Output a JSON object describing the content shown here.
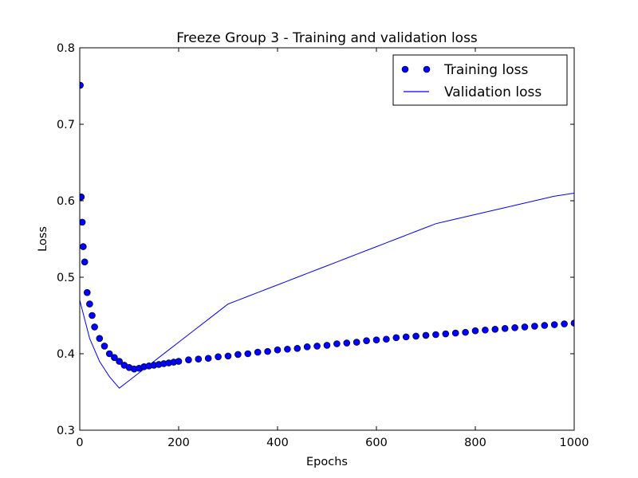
{
  "chart_data": {
    "type": "line",
    "title": "Freeze Group 3 - Training and validation loss",
    "xlabel": "Epochs",
    "ylabel": "Loss",
    "xlim": [
      0,
      1000
    ],
    "ylim": [
      0.3,
      0.8
    ],
    "xticks": [
      0,
      200,
      400,
      600,
      800,
      1000
    ],
    "yticks": [
      0.3,
      0.4,
      0.5,
      0.6,
      0.7,
      0.8
    ],
    "xtick_labels": [
      "0",
      "200",
      "400",
      "600",
      "800",
      "1000"
    ],
    "ytick_labels": [
      "0.3",
      "0.4",
      "0.5",
      "0.6",
      "0.7",
      "0.8"
    ],
    "grid": false,
    "legend_position": "top-right",
    "colors": {
      "series": "#0000ff",
      "axes": "#000000",
      "background": "#ffffff"
    },
    "series": [
      {
        "name": "Training loss",
        "style": "markers",
        "x": [
          1,
          3,
          5,
          7,
          10,
          15,
          20,
          25,
          30,
          40,
          50,
          60,
          70,
          80,
          90,
          100,
          110,
          120,
          130,
          140,
          150,
          160,
          170,
          180,
          190,
          200,
          220,
          240,
          260,
          280,
          300,
          320,
          340,
          360,
          380,
          400,
          420,
          440,
          460,
          480,
          500,
          520,
          540,
          560,
          580,
          600,
          620,
          640,
          660,
          680,
          700,
          720,
          740,
          760,
          780,
          800,
          820,
          840,
          860,
          880,
          900,
          920,
          940,
          960,
          980,
          1000
        ],
        "y": [
          0.751,
          0.605,
          0.572,
          0.54,
          0.52,
          0.48,
          0.465,
          0.45,
          0.435,
          0.42,
          0.41,
          0.4,
          0.395,
          0.39,
          0.385,
          0.382,
          0.38,
          0.381,
          0.383,
          0.384,
          0.385,
          0.386,
          0.387,
          0.388,
          0.389,
          0.39,
          0.392,
          0.393,
          0.394,
          0.396,
          0.397,
          0.399,
          0.4,
          0.402,
          0.403,
          0.405,
          0.406,
          0.407,
          0.409,
          0.41,
          0.411,
          0.413,
          0.414,
          0.415,
          0.417,
          0.418,
          0.419,
          0.421,
          0.422,
          0.423,
          0.424,
          0.425,
          0.426,
          0.427,
          0.428,
          0.43,
          0.431,
          0.432,
          0.433,
          0.434,
          0.435,
          0.436,
          0.437,
          0.438,
          0.439,
          0.44
        ]
      },
      {
        "name": "Validation loss",
        "style": "line",
        "x": [
          0,
          20,
          40,
          60,
          80,
          100,
          120,
          140,
          160,
          180,
          200,
          220,
          240,
          260,
          280,
          300,
          320,
          340,
          360,
          380,
          400,
          420,
          440,
          460,
          480,
          500,
          520,
          540,
          560,
          580,
          600,
          620,
          640,
          660,
          680,
          700,
          720,
          740,
          760,
          780,
          800,
          820,
          840,
          860,
          880,
          900,
          920,
          940,
          960,
          980,
          1000
        ],
        "y": [
          0.47,
          0.42,
          0.39,
          0.37,
          0.355,
          0.365,
          0.375,
          0.385,
          0.395,
          0.405,
          0.415,
          0.425,
          0.435,
          0.445,
          0.455,
          0.465,
          0.47,
          0.475,
          0.48,
          0.485,
          0.49,
          0.495,
          0.5,
          0.505,
          0.51,
          0.515,
          0.52,
          0.525,
          0.53,
          0.535,
          0.54,
          0.545,
          0.55,
          0.555,
          0.56,
          0.565,
          0.57,
          0.573,
          0.576,
          0.579,
          0.582,
          0.585,
          0.588,
          0.591,
          0.594,
          0.597,
          0.6,
          0.603,
          0.606,
          0.608,
          0.61
        ]
      }
    ]
  }
}
